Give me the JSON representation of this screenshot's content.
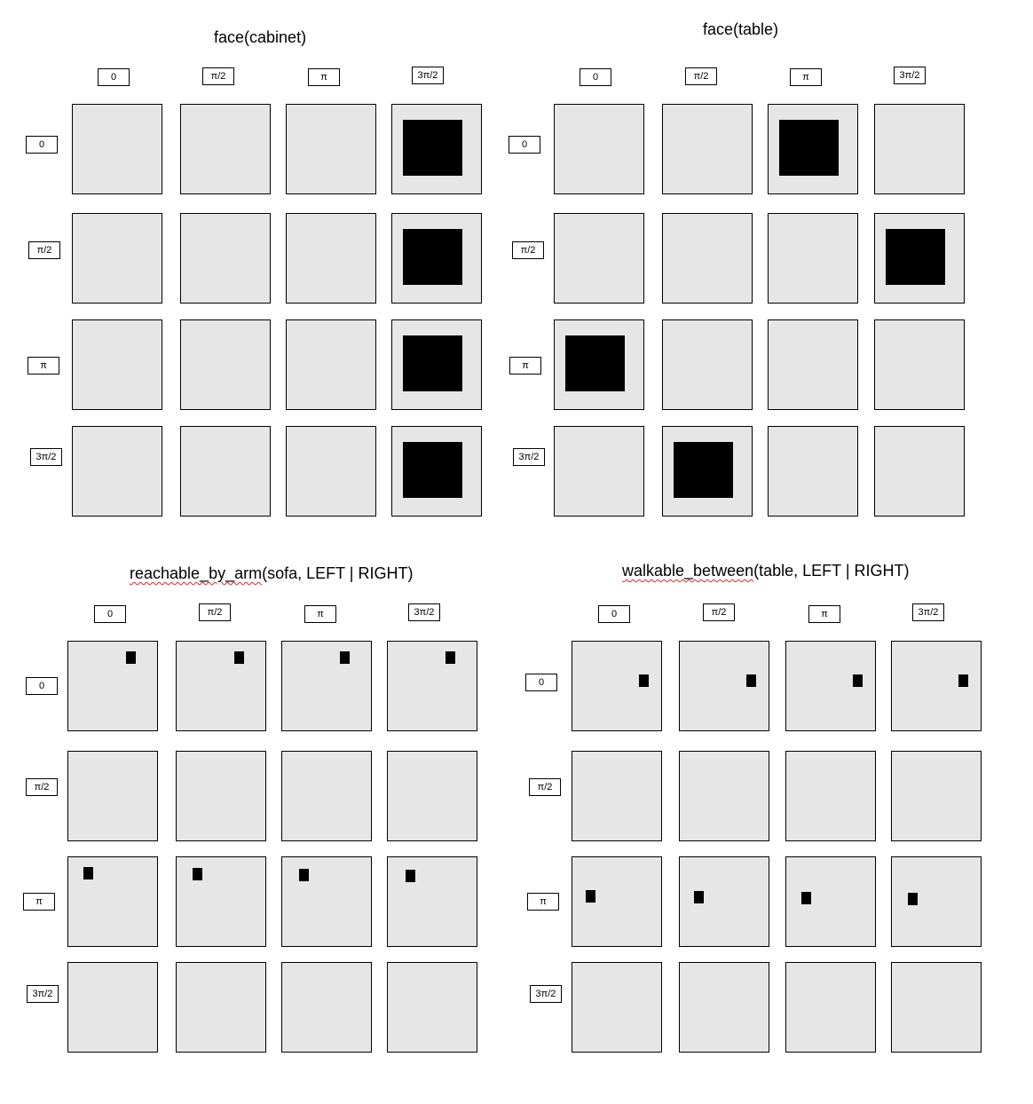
{
  "panels": [
    {
      "title_prefix": "",
      "title_squiggly": "face",
      "title_suffix": "(cabinet)",
      "cols": [
        "0",
        "π/2",
        "π",
        "3π/2"
      ],
      "rows": [
        "0",
        "π/2",
        "π",
        "3π/2"
      ],
      "filled": [
        [
          0,
          3
        ],
        [
          1,
          3
        ],
        [
          2,
          3
        ],
        [
          3,
          3
        ]
      ],
      "marks": []
    },
    {
      "title_prefix": "",
      "title_squiggly": "face",
      "title_suffix": "(table)",
      "cols": [
        "0",
        "π/2",
        "π",
        "3π/2"
      ],
      "rows": [
        "0",
        "π/2",
        "π",
        "3π/2"
      ],
      "filled": [
        [
          0,
          2
        ],
        [
          1,
          3
        ],
        [
          2,
          0
        ],
        [
          3,
          1
        ]
      ],
      "marks": []
    },
    {
      "title_prefix": "",
      "title_squiggly": "reachable_by_arm",
      "title_suffix": "(sofa, LEFT | RIGHT)",
      "cols": [
        "0",
        "π/2",
        "π",
        "3π/2"
      ],
      "rows": [
        "0",
        "π/2",
        "π",
        "3π/2"
      ],
      "filled": [],
      "marks": [
        [
          0,
          "top-right"
        ],
        [
          2,
          "top-left"
        ]
      ]
    },
    {
      "title_prefix": "",
      "title_squiggly": "walkable_between",
      "title_suffix": "(table, LEFT | RIGHT)",
      "cols": [
        "0",
        "π/2",
        "π",
        "3π/2"
      ],
      "rows": [
        "0",
        "π/2",
        "π",
        "3π/2"
      ],
      "filled": [],
      "marks": [
        [
          0,
          "mid-right"
        ],
        [
          2,
          "mid-left"
        ]
      ]
    }
  ]
}
